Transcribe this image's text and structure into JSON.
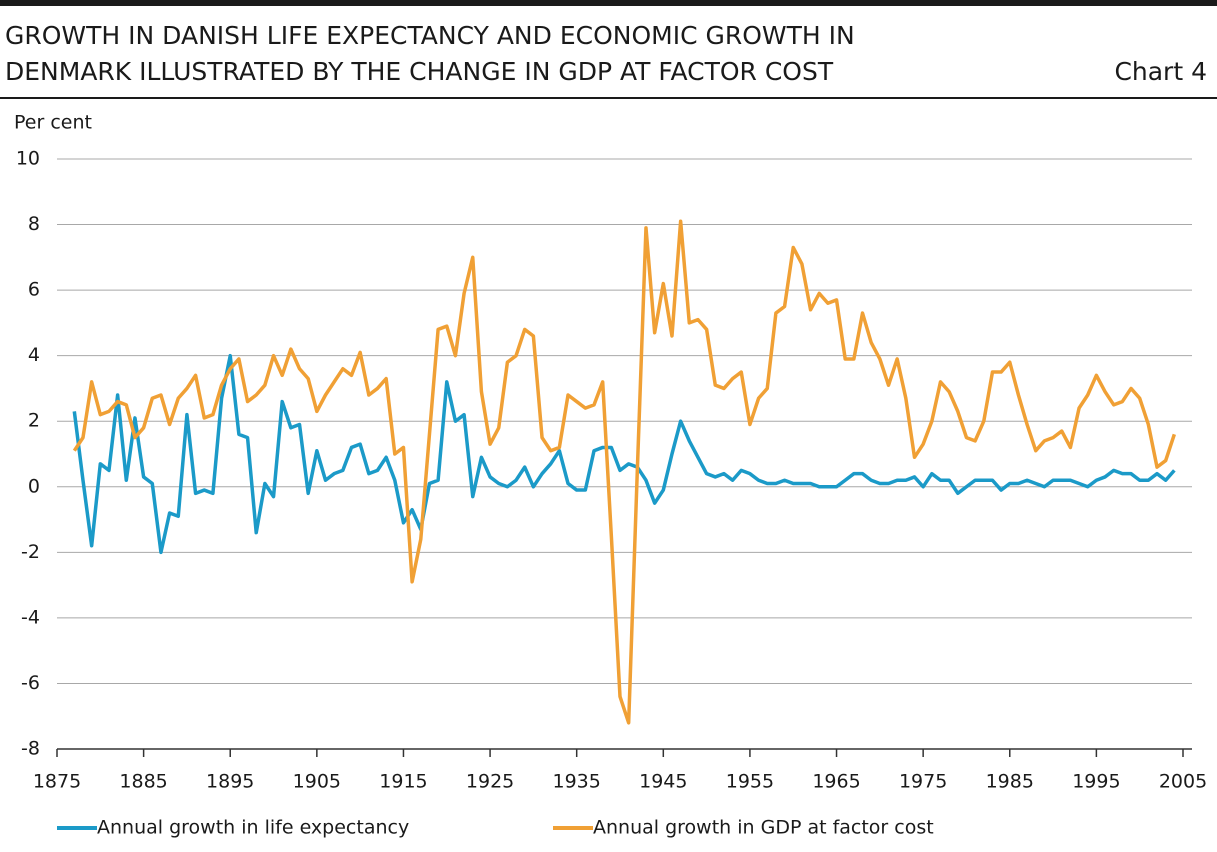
{
  "chart_data": {
    "type": "line",
    "title": [
      "GROWTH IN DANISH LIFE EXPECTANCY AND ECONOMIC GROWTH IN",
      "DENMARK ILLUSTRATED BY THE CHANGE IN GDP AT FACTOR COST"
    ],
    "chart_label": "Chart 4",
    "y_label": "Per cent",
    "xlim": [
      1875,
      2005
    ],
    "xticks": [
      1875,
      1885,
      1895,
      1905,
      1915,
      1925,
      1935,
      1945,
      1955,
      1965,
      1975,
      1985,
      1995,
      2005
    ],
    "ylim": [
      -8,
      10
    ],
    "yticks": [
      -8,
      -6,
      -4,
      -2,
      0,
      2,
      4,
      6,
      8,
      10
    ],
    "grid": true,
    "legend": "bottom",
    "x": [
      1877,
      1878,
      1879,
      1880,
      1881,
      1882,
      1883,
      1884,
      1885,
      1886,
      1887,
      1888,
      1889,
      1890,
      1891,
      1892,
      1893,
      1894,
      1895,
      1896,
      1897,
      1898,
      1899,
      1900,
      1901,
      1902,
      1903,
      1904,
      1905,
      1906,
      1907,
      1908,
      1909,
      1910,
      1911,
      1912,
      1913,
      1914,
      1915,
      1916,
      1917,
      1918,
      1919,
      1920,
      1921,
      1922,
      1923,
      1924,
      1925,
      1926,
      1927,
      1928,
      1929,
      1930,
      1931,
      1932,
      1933,
      1934,
      1935,
      1936,
      1937,
      1938,
      1939,
      1940,
      1941,
      1942,
      1943,
      1944,
      1945,
      1946,
      1947,
      1948,
      1949,
      1950,
      1951,
      1952,
      1953,
      1954,
      1955,
      1956,
      1957,
      1958,
      1959,
      1960,
      1961,
      1962,
      1963,
      1964,
      1965,
      1966,
      1967,
      1968,
      1969,
      1970,
      1971,
      1972,
      1973,
      1974,
      1975,
      1976,
      1977,
      1978,
      1979,
      1980,
      1981,
      1982,
      1983,
      1984,
      1985,
      1986,
      1987,
      1988,
      1989,
      1990,
      1991,
      1992,
      1993,
      1994,
      1995,
      1996,
      1997,
      1998,
      1999,
      2000,
      2001,
      2002,
      2003,
      2004
    ],
    "series": [
      {
        "name": "Annual growth in life expectancy",
        "color": "#1b9ac8",
        "values": [
          2.3,
          0.2,
          -1.8,
          0.7,
          0.5,
          2.8,
          0.2,
          2.1,
          0.3,
          0.1,
          -2.0,
          -0.8,
          -0.9,
          2.2,
          -0.2,
          -0.1,
          -0.2,
          2.7,
          4.0,
          1.6,
          1.5,
          -1.4,
          0.1,
          -0.3,
          2.6,
          1.8,
          1.9,
          -0.2,
          1.1,
          0.2,
          0.4,
          0.5,
          1.2,
          1.3,
          0.4,
          0.5,
          0.9,
          0.2,
          -1.1,
          -0.7,
          -1.3,
          0.1,
          0.2,
          3.2,
          2.0,
          2.2,
          -0.3,
          0.9,
          0.3,
          0.1,
          0.0,
          0.2,
          0.6,
          0.0,
          0.4,
          0.7,
          1.1,
          0.1,
          -0.1,
          -0.1,
          1.1,
          1.2,
          1.2,
          0.5,
          0.7,
          0.6,
          0.2,
          -0.5,
          -0.1,
          1.0,
          2.0,
          1.4,
          0.9,
          0.4,
          0.3,
          0.4,
          0.2,
          0.5,
          0.4,
          0.2,
          0.1,
          0.1,
          0.2,
          0.1,
          0.1,
          0.1,
          0.0,
          0.0,
          0.0,
          0.2,
          0.4,
          0.4,
          0.2,
          0.1,
          0.1,
          0.2,
          0.2,
          0.3,
          0.0,
          0.4,
          0.2,
          0.2,
          -0.2,
          0.0,
          0.2,
          0.2,
          0.2,
          -0.1,
          0.1,
          0.1,
          0.2,
          0.1,
          0.0,
          0.2,
          0.2,
          0.2,
          0.1,
          0.0,
          0.2,
          0.3,
          0.5,
          0.4,
          0.4,
          0.2,
          0.2,
          0.4,
          0.2,
          0.5
        ]
      },
      {
        "name": "Annual growth in GDP at factor cost",
        "color": "#f0a035",
        "values": [
          1.1,
          1.5,
          3.2,
          2.2,
          2.3,
          2.6,
          2.5,
          1.5,
          1.8,
          2.7,
          2.8,
          1.9,
          2.7,
          3.0,
          3.4,
          2.1,
          2.2,
          3.1,
          3.6,
          3.9,
          2.6,
          2.8,
          3.1,
          4.0,
          3.4,
          4.2,
          3.6,
          3.3,
          2.3,
          2.8,
          3.2,
          3.6,
          3.4,
          4.1,
          2.8,
          3.0,
          3.3,
          1.0,
          1.2,
          -2.9,
          -1.6,
          1.6,
          4.8,
          4.9,
          4.0,
          5.9,
          7.0,
          2.9,
          1.3,
          1.8,
          3.8,
          4.0,
          4.8,
          4.6,
          1.5,
          1.1,
          1.2,
          2.8,
          2.6,
          2.4,
          2.5,
          3.2,
          -1.5,
          -6.4,
          -7.2,
          0.5,
          7.9,
          4.7,
          6.2,
          4.6,
          8.1,
          5.0,
          5.1,
          4.8,
          3.1,
          3.0,
          3.3,
          3.5,
          1.9,
          2.7,
          3.0,
          5.3,
          5.5,
          7.3,
          6.8,
          5.4,
          5.9,
          5.6,
          5.7,
          3.9,
          3.9,
          5.3,
          4.4,
          3.9,
          3.1,
          3.9,
          2.7,
          0.9,
          1.3,
          2.0,
          3.2,
          2.9,
          2.3,
          1.5,
          1.4,
          2.0,
          3.5,
          3.5,
          3.8,
          2.8,
          1.9,
          1.1,
          1.4,
          1.5,
          1.7,
          1.2,
          2.4,
          2.8,
          3.4,
          2.9,
          2.5,
          2.6,
          3.0,
          2.7,
          1.9,
          0.6,
          0.8,
          1.6
        ]
      }
    ]
  }
}
